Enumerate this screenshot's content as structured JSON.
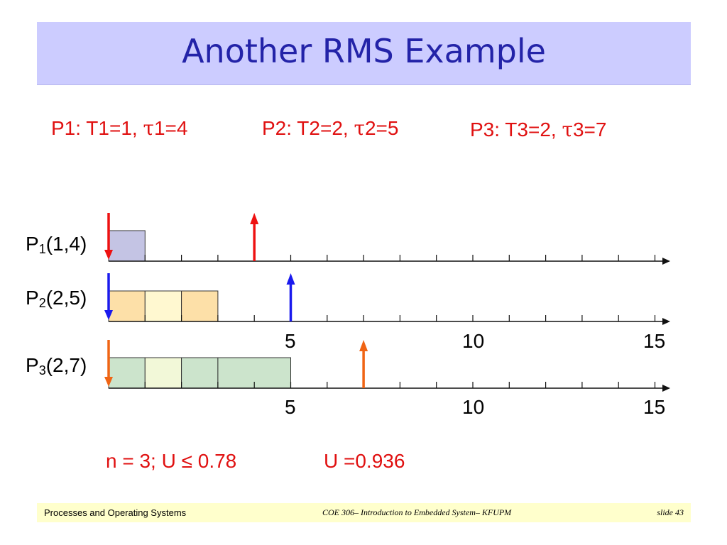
{
  "slide": {
    "title": "Another RMS Example",
    "params": [
      {
        "prefix": "P1: T1=1, ",
        "tau": "τ",
        "suffix": "1=4"
      },
      {
        "prefix": "P2: T2=2, ",
        "tau": "τ",
        "suffix": "2=5"
      },
      {
        "prefix": "P3: T3=2, ",
        "tau": "τ",
        "suffix": "3=7"
      }
    ],
    "processes": [
      {
        "name": "P",
        "sub": "1",
        "args": "(1,4)"
      },
      {
        "name": "P",
        "sub": "2",
        "args": "(2,5)"
      },
      {
        "name": "P",
        "sub": "3",
        "args": "(2,7)"
      }
    ],
    "tick_labels_mid": [
      "5",
      "10",
      "15"
    ],
    "tick_labels_bottom": [
      "5",
      "10",
      "15"
    ],
    "bottom_left": "n = 3;  U ≤ 0.78",
    "bottom_right": "U =0.936",
    "footer": {
      "left": "Processes and Operating Systems",
      "center": "COE 306– Introduction to Embedded System– KFUPM",
      "right": "slide 43"
    }
  },
  "timeline": {
    "axis_max": 15,
    "rows": [
      {
        "process": "P1",
        "blocks": [
          {
            "start": 0,
            "end": 1,
            "color": "#c4c4e4"
          }
        ],
        "release_arrow": 0,
        "deadline_arrow": 4,
        "arrow_color": "#ee1111"
      },
      {
        "process": "P2",
        "blocks": [
          {
            "start": 0,
            "end": 1,
            "color": "#fde0a8"
          },
          {
            "start": 1,
            "end": 2,
            "color": "#fff8d0"
          },
          {
            "start": 2,
            "end": 3,
            "color": "#fde0a8"
          }
        ],
        "release_arrow": 0,
        "deadline_arrow": 5,
        "arrow_color": "#1a1aee"
      },
      {
        "process": "P3",
        "blocks": [
          {
            "start": 0,
            "end": 1,
            "color": "#cce4cc"
          },
          {
            "start": 1,
            "end": 2,
            "color": "#f2f8d8"
          },
          {
            "start": 2,
            "end": 3,
            "color": "#cce4cc"
          },
          {
            "start": 3,
            "end": 5,
            "color": "#cce4cc"
          }
        ],
        "release_arrow": 0,
        "deadline_arrow": 7,
        "arrow_color": "#f06414"
      }
    ]
  }
}
